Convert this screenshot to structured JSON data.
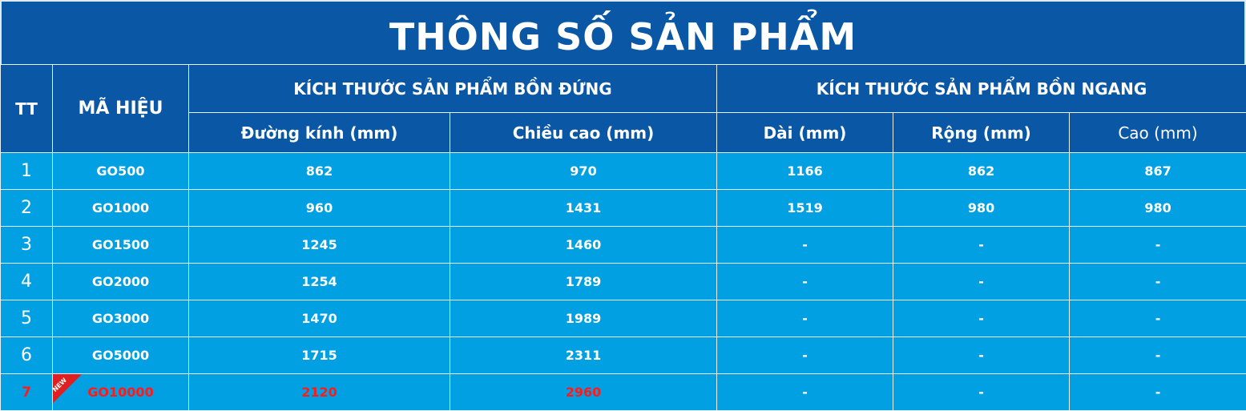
{
  "title": "THÔNG SỐ SẢN PHẨM",
  "headers": {
    "tt": "TT",
    "code": "MÃ HIỆU",
    "vertical_group": "KÍCH THƯỚC SẢN PHẨM BỒN ĐỨNG",
    "horizontal_group": "KÍCH THƯỚC SẢN PHẨM BỒN NGANG",
    "diameter": "Đường kính (mm)",
    "height": "Chiều cao (mm)",
    "length": "Dài (mm)",
    "width": "Rộng (mm)",
    "h_height": "Cao (mm)"
  },
  "badge": "NEW",
  "colors": {
    "header": "#0a57a5",
    "row": "#01a0e3",
    "highlight_text": "#ff1a1a"
  },
  "rows": [
    {
      "tt": "1",
      "code": "GO500",
      "diameter": "862",
      "height": "970",
      "length": "1166",
      "width": "862",
      "h_height": "867"
    },
    {
      "tt": "2",
      "code": "GO1000",
      "diameter": "960",
      "height": "1431",
      "length": "1519",
      "width": "980",
      "h_height": "980"
    },
    {
      "tt": "3",
      "code": "GO1500",
      "diameter": "1245",
      "height": "1460",
      "length": "-",
      "width": "-",
      "h_height": "-"
    },
    {
      "tt": "4",
      "code": "GO2000",
      "diameter": "1254",
      "height": "1789",
      "length": "-",
      "width": "-",
      "h_height": "-"
    },
    {
      "tt": "5",
      "code": "GO3000",
      "diameter": "1470",
      "height": "1989",
      "length": "-",
      "width": "-",
      "h_height": "-"
    },
    {
      "tt": "6",
      "code": "GO5000",
      "diameter": "1715",
      "height": "2311",
      "length": "-",
      "width": "-",
      "h_height": "-"
    },
    {
      "tt": "7",
      "code": "GO10000",
      "diameter": "2120",
      "height": "2960",
      "length": "-",
      "width": "-",
      "h_height": "-"
    }
  ]
}
